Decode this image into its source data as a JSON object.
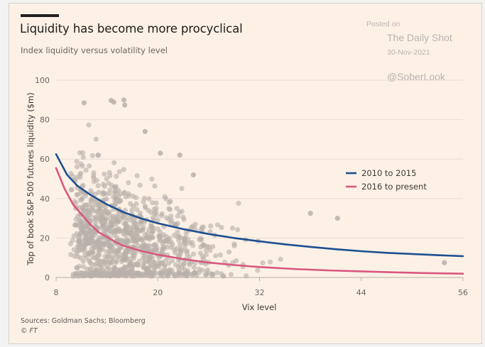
{
  "header": {
    "title": "Liquidity has become more procyclical",
    "subtitle": "Index liquidity versus volatility level"
  },
  "watermark": {
    "posted": "Posted on",
    "publication": "The Daily Shot",
    "date": "30-Nov-2021",
    "handle": "@SoberLook"
  },
  "footer": {
    "sources": "Sources: Goldman Sachs; Bloomberg",
    "copyright": "© FT"
  },
  "colors": {
    "background": "#fdf1e6",
    "series_2010_2015": "#1d4f91",
    "series_2016_present": "#d9577f",
    "scatter": "#b8b0aa",
    "gridline": "#e6ddd4"
  },
  "chart_data": {
    "type": "scatter",
    "title": "Liquidity has become more procyclical",
    "subtitle": "Index liquidity versus volatility level",
    "xlabel": "Vix level",
    "ylabel": "Top of book S&P 500 futures liquidity ($m)",
    "xlim": [
      8,
      56
    ],
    "ylim": [
      0,
      100
    ],
    "xticks": [
      8,
      20,
      32,
      44,
      56
    ],
    "yticks": [
      0,
      20,
      40,
      60,
      80,
      100
    ],
    "grid": "horizontal",
    "legend_position": "right-center",
    "series": [
      {
        "name": "2010 to 2015",
        "kind": "line",
        "color": "#1d4f91",
        "x": [
          8,
          9.3,
          10.5,
          12,
          14,
          16,
          18,
          20,
          23,
          26,
          29,
          32,
          35,
          38,
          41,
          44,
          47,
          50,
          53,
          56
        ],
        "y": [
          62.5,
          52,
          46.5,
          42,
          37,
          33,
          30,
          27.5,
          24.5,
          22,
          20,
          18.3,
          16.8,
          15.5,
          14.3,
          13.3,
          12.5,
          11.9,
          11.3,
          10.8
        ]
      },
      {
        "name": "2016 to present",
        "kind": "line",
        "color": "#d9577f",
        "x": [
          8,
          9,
          10,
          11,
          12,
          13,
          14,
          15,
          16,
          18,
          20,
          23,
          26,
          29,
          32,
          36,
          40,
          44,
          48,
          52,
          56
        ],
        "y": [
          55.5,
          45,
          37,
          32,
          27,
          23,
          20.5,
          18,
          16,
          13.5,
          11.5,
          9.3,
          7.5,
          6.3,
          5.3,
          4.3,
          3.6,
          3.1,
          2.6,
          2.2,
          1.9
        ]
      }
    ],
    "resolvable_outlier_points": {
      "note": "Isolated scatter points legible as individual marks; approximate readings.",
      "x": [
        11.3,
        14.5,
        14.8,
        16,
        16.1,
        18.5,
        20.3,
        22.6,
        24.2,
        38,
        41.2,
        53.8
      ],
      "y": [
        88.5,
        89.7,
        88.9,
        90,
        87.4,
        74,
        63,
        62,
        52,
        32.5,
        30,
        7.5
      ]
    }
  },
  "scatter_illustration": {
    "is_data": false,
    "note": "Background cloud of ~1,000 points is decorative — a synthetic approximation of the observed point density, NOT data read from the chart. Individual observations in the original scatter are not recoverable from the image.",
    "seed": 7,
    "count": 1100
  },
  "legend": [
    {
      "label": "2010 to 2015",
      "color": "#1d4f91"
    },
    {
      "label": "2016 to present",
      "color": "#d9577f"
    }
  ]
}
